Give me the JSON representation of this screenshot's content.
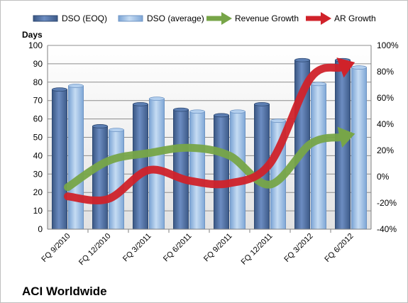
{
  "chart_data": {
    "type": "bar",
    "company_label": "ACI Worldwide",
    "ylabel": "Days",
    "categories": [
      "FQ 9/2010",
      "FQ 12/2010",
      "FQ 3/2011",
      "FQ 6/2011",
      "FQ 9/2011",
      "FQ 12/2011",
      "FQ 3/2012",
      "FQ 6/2012"
    ],
    "ylim": [
      0,
      100
    ],
    "y_ticks": [
      "0",
      "10",
      "20",
      "30",
      "40",
      "50",
      "60",
      "70",
      "80",
      "90",
      "100"
    ],
    "y2lim": [
      -40,
      100
    ],
    "y2_ticks": [
      "-40%",
      "-20%",
      "0%",
      "20%",
      "40%",
      "60%",
      "80%",
      "100%"
    ],
    "legend_position": "top",
    "grid": true,
    "series": [
      {
        "name": "DSO (EOQ)",
        "kind": "bar",
        "axis": "left",
        "color": "#4f6fa0",
        "values": [
          76,
          56,
          68,
          65,
          62,
          68,
          92,
          92
        ]
      },
      {
        "name": "DSO (average)",
        "kind": "bar",
        "axis": "left",
        "color": "#8db4e2",
        "values": [
          78,
          54,
          71,
          64,
          64,
          59,
          79,
          88
        ]
      },
      {
        "name": "Revenue Growth",
        "kind": "arrow-line",
        "axis": "right",
        "color": "#77a548",
        "values": [
          -8,
          12,
          18,
          22,
          16,
          -6,
          25,
          32
        ]
      },
      {
        "name": "AR Growth",
        "kind": "arrow-line",
        "axis": "right",
        "color": "#d0222a",
        "values": [
          -15,
          -17,
          5,
          -3,
          -5,
          10,
          75,
          86
        ]
      }
    ]
  }
}
